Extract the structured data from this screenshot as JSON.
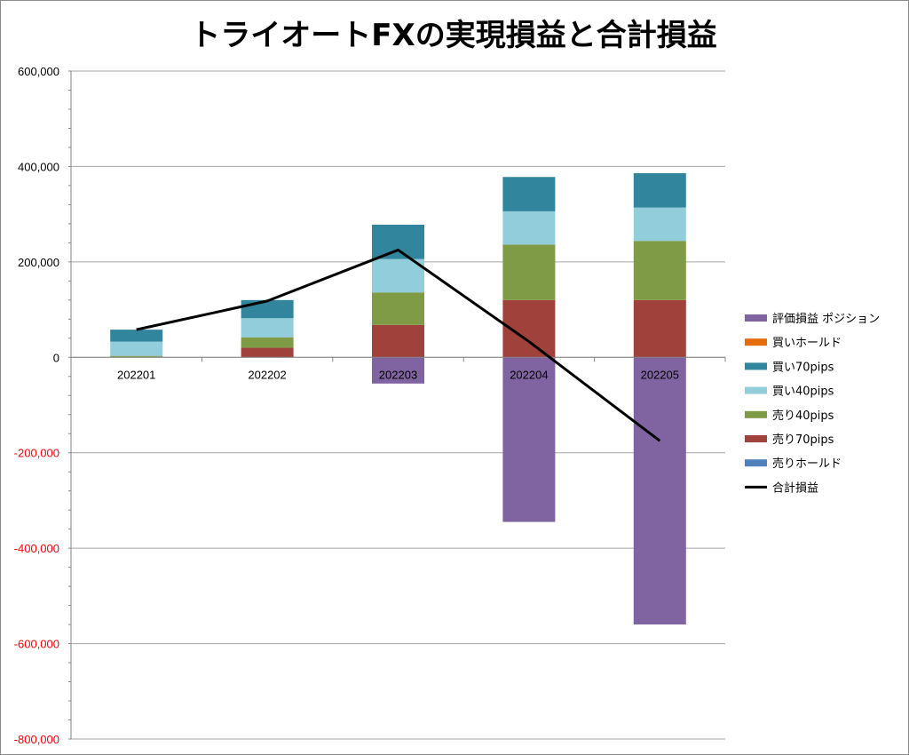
{
  "chart_data": {
    "type": "bar",
    "stacked": true,
    "title": "トライオートFXの実現損益と合計損益",
    "categories": [
      "202201",
      "202202",
      "202203",
      "202204",
      "202205"
    ],
    "ylim": [
      -800000,
      600000
    ],
    "yticks": [
      600000,
      400000,
      200000,
      0,
      -200000,
      -400000,
      -600000,
      -800000
    ],
    "ytick_labels": [
      "600,000",
      "400,000",
      "200,000",
      "0",
      "-200,000",
      "-400,000",
      "-600,000",
      "-800,000"
    ],
    "negative_tick_color": "#ff0000",
    "grid": true,
    "legend_position": "right",
    "series": [
      {
        "name": "売りホールド",
        "color": "#4f81bd",
        "values": [
          0,
          0,
          0,
          0,
          0
        ]
      },
      {
        "name": "売り70pips",
        "color": "#a0413c",
        "values": [
          1000,
          20000,
          68000,
          120000,
          120000
        ]
      },
      {
        "name": "売り40pips",
        "color": "#7f9b45",
        "values": [
          2000,
          22000,
          68000,
          116000,
          124000
        ]
      },
      {
        "name": "買い40pips",
        "color": "#92cddc",
        "values": [
          30000,
          40000,
          70000,
          70000,
          70000
        ]
      },
      {
        "name": "買い70pips",
        "color": "#31859c",
        "values": [
          25000,
          38000,
          72000,
          72000,
          72000
        ]
      },
      {
        "name": "買いホールド",
        "color": "#e46c0a",
        "values": [
          0,
          0,
          0,
          0,
          0
        ]
      },
      {
        "name": "評価損益 ポジション",
        "color": "#8064a2",
        "values": [
          0,
          0,
          -55000,
          -345000,
          -560000
        ]
      }
    ],
    "line": {
      "name": "合計損益",
      "color": "#000000",
      "values": [
        58000,
        118000,
        225000,
        33000,
        -175000
      ]
    },
    "legend_order": [
      "評価損益 ポジション",
      "買いホールド",
      "買い70pips",
      "買い40pips",
      "売り40pips",
      "売り70pips",
      "売りホールド",
      "合計損益"
    ]
  }
}
